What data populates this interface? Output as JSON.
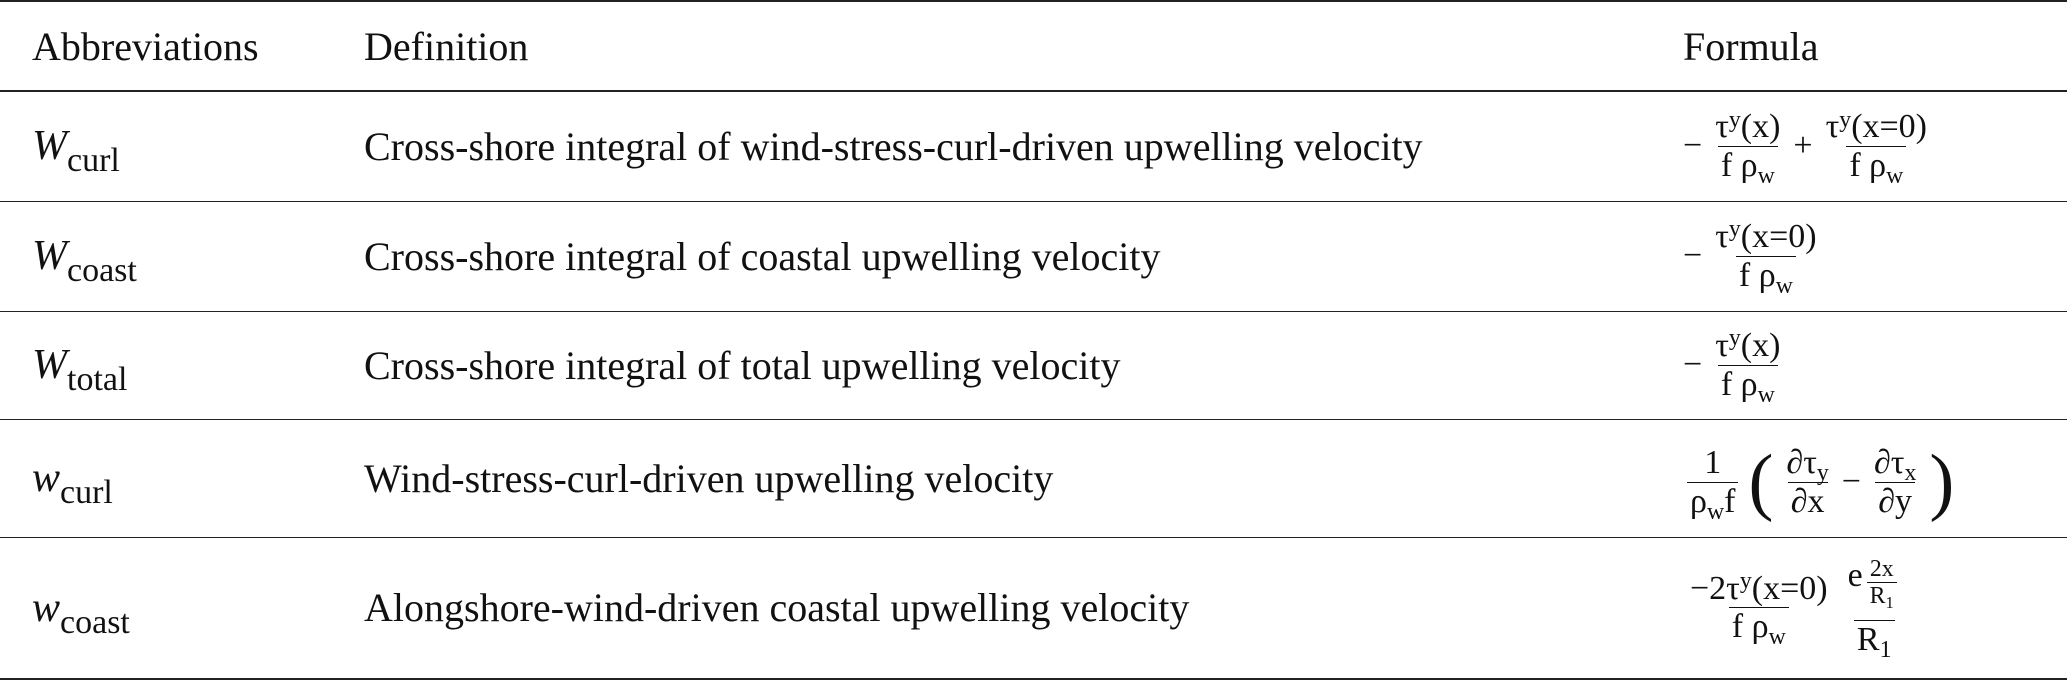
{
  "table": {
    "header": [
      "Abbreviations",
      "Definition",
      "Formula"
    ],
    "rows": [
      {
        "abbr": {
          "base": "W",
          "sub": "curl"
        },
        "definition": "Cross-shore integral of wind-stress-curl-driven upwelling velocity",
        "formula": [
          "−",
          {
            "frac": [
              [
                "τ",
                {
                  "sup": "y"
                },
                "(x)"
              ],
              [
                "f ρ",
                {
                  "sub": "w"
                }
              ]
            ]
          },
          "+",
          {
            "frac": [
              [
                "τ",
                {
                  "sup": "y"
                },
                "(x=0)"
              ],
              [
                "f ρ",
                {
                  "sub": "w"
                }
              ]
            ]
          }
        ]
      },
      {
        "abbr": {
          "base": "W",
          "sub": "coast"
        },
        "definition": "Cross-shore integral of coastal upwelling velocity",
        "formula": [
          "−",
          {
            "frac": [
              [
                "τ",
                {
                  "sup": "y"
                },
                "(x=0)"
              ],
              [
                "f ρ",
                {
                  "sub": "w"
                }
              ]
            ]
          }
        ]
      },
      {
        "abbr": {
          "base": "W",
          "sub": "total"
        },
        "definition": "Cross-shore integral of total upwelling velocity",
        "formula": [
          "−",
          {
            "frac": [
              [
                "τ",
                {
                  "sup": "y"
                },
                "(x)"
              ],
              [
                "f ρ",
                {
                  "sub": "w"
                }
              ]
            ]
          }
        ]
      },
      {
        "abbr": {
          "base": "w",
          "sub": "curl"
        },
        "definition": "Wind-stress-curl-driven upwelling velocity",
        "formula": [
          {
            "frac": [
              [
                "1"
              ],
              [
                "ρ",
                {
                  "sub": "w"
                },
                " f"
              ]
            ]
          },
          {
            "big": "("
          },
          {
            "frac": [
              [
                "∂τ",
                {
                  "sub": "y"
                }
              ],
              [
                "∂x"
              ]
            ]
          },
          "−",
          {
            "frac": [
              [
                "∂τ",
                {
                  "sub": "x"
                }
              ],
              [
                "∂y"
              ]
            ]
          },
          {
            "big": ")"
          }
        ]
      },
      {
        "abbr": {
          "base": "w",
          "sub": "coast"
        },
        "definition": "Alongshore-wind-driven coastal upwelling velocity",
        "formula": [
          {
            "frac": [
              [
                "−2τ",
                {
                  "sup": "y"
                },
                "(x=0)"
              ],
              [
                "f ρ",
                {
                  "sub": "w"
                }
              ]
            ]
          },
          {
            "frac": [
              [
                "e",
                {
                  "sup": [
                    {
                      "frac": [
                        [
                          "2x"
                        ],
                        [
                          "R",
                          {
                            "sub": "1"
                          }
                        ]
                      ]
                    }
                  ]
                }
              ],
              [
                "R",
                {
                  "sub": "1"
                }
              ]
            ]
          }
        ]
      }
    ]
  }
}
